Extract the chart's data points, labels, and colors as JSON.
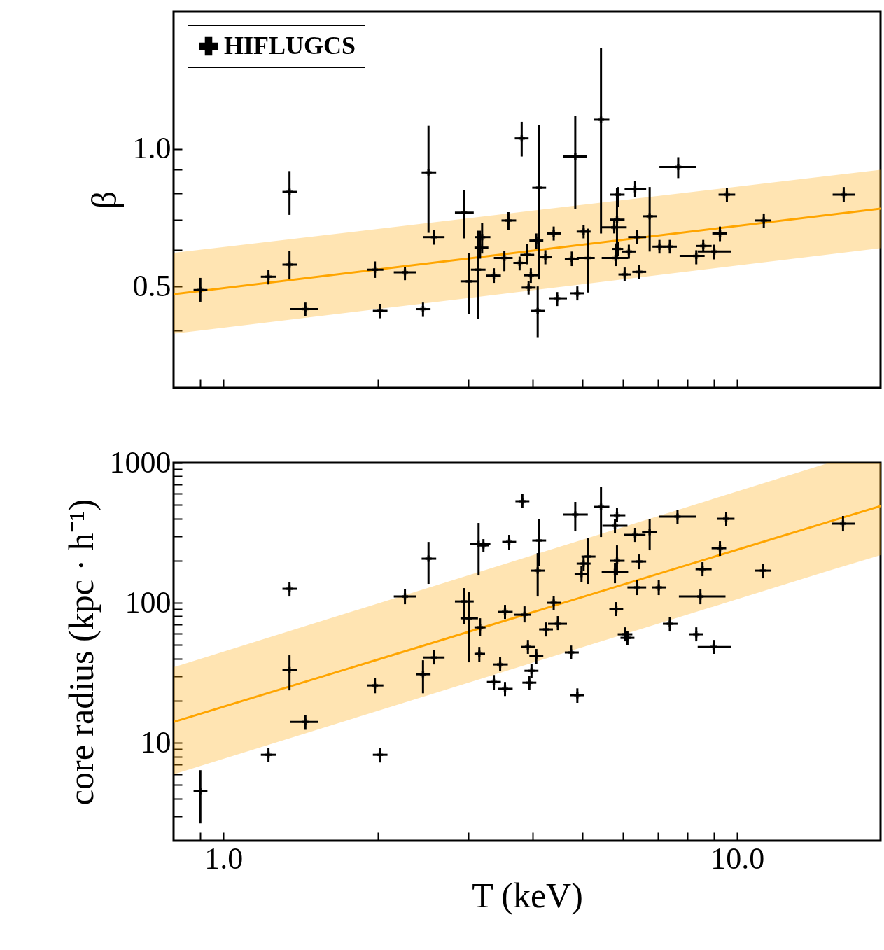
{
  "chart_data": [
    {
      "type": "scatter",
      "ylabel": "β",
      "log": "xy",
      "xlim": [
        0.8,
        19
      ],
      "ylim": [
        0.3,
        2.0
      ],
      "xticks": [
        {
          "value": 0.9,
          "label": null
        },
        {
          "value": 1,
          "label": null
        },
        {
          "value": 2,
          "label": null
        },
        {
          "value": 3,
          "label": null
        },
        {
          "value": 4,
          "label": null
        },
        {
          "value": 5,
          "label": null
        },
        {
          "value": 6,
          "label": null
        },
        {
          "value": 7,
          "label": null
        },
        {
          "value": 8,
          "label": null
        },
        {
          "value": 9,
          "label": null
        },
        {
          "value": 10,
          "label": null
        }
      ],
      "yticks": [
        {
          "value": 0.3,
          "label": null
        },
        {
          "value": 0.4,
          "label": null
        },
        0.5,
        {
          "value": 0.6,
          "label": null
        },
        {
          "value": 0.7,
          "label": null
        },
        {
          "value": 0.8,
          "label": null
        },
        {
          "value": 0.9,
          "label": null
        },
        {
          "value": 1,
          "label": "1.0"
        }
      ],
      "tick_labels": "y",
      "legend": "top left",
      "series": [
        {
          "name": "HIFLUGCS",
          "type": "scatter",
          "marker": "cross",
          "color": "#000000",
          "x": [
            0.902,
            1.224,
            1.345,
            1.345,
            1.444,
            1.972,
            2.016,
            2.256,
            2.446,
            2.507,
            2.57,
            2.939,
            3.004,
            3.129,
            3.188,
            3.158,
            3.806,
            3.587,
            3.36,
            3.522,
            3.771,
            3.902,
            3.926,
            4.115,
            4.089,
            4.064,
            4.393,
            3.965,
            4.232,
            4.839,
            4.462,
            4.884,
            5.023,
            5.118,
            4.764,
            5.43,
            5.762,
            5.853,
            5.833,
            5.798,
            5.853,
            6.327,
            6.386,
            6.151,
            6.036,
            6.446,
            6.753,
            7.055,
            7.392,
            7.674,
            8.585,
            9.022,
            8.321,
            9.544,
            9.252,
            11.26,
            16.11
          ],
          "values": [
            0.491,
            0.525,
            0.805,
            0.558,
            0.446,
            0.544,
            0.442,
            0.537,
            0.446,
            0.888,
            0.641,
            0.725,
            0.513,
            0.544,
            0.641,
            0.608,
            1.054,
            0.697,
            0.528,
            0.577,
            0.563,
            0.586,
            0.497,
            0.822,
            0.442,
            0.63,
            0.653,
            0.529,
            0.579,
            0.962,
            0.471,
            0.483,
            0.659,
            0.577,
            0.575,
            1.158,
            0.673,
            0.794,
            0.7,
            0.577,
            0.604,
            0.816,
            0.641,
            0.596,
            0.531,
            0.538,
            0.712,
            0.611,
            0.611,
            0.913,
            0.613,
            0.596,
            0.583,
            0.794,
            0.653,
            0.697,
            0.794
          ],
          "errors": [
            [
              0.463,
              0.522
            ],
            [
              0.505,
              0.544
            ],
            [
              0.717,
              0.894
            ],
            [
              0.518,
              0.598
            ],
            [
              0.43,
              0.461
            ],
            [
              0.522,
              0.567
            ],
            [
              0.426,
              0.458
            ],
            [
              0.516,
              0.552
            ],
            [
              0.429,
              0.461
            ],
            [
              0.655,
              1.123
            ],
            [
              0.617,
              0.664
            ],
            [
              0.637,
              0.811
            ],
            [
              0.435,
              0.592
            ],
            [
              0.424,
              0.662
            ],
            [
              0.59,
              0.688
            ],
            [
              0.575,
              0.662
            ],
            [
              0.962,
              1.146
            ],
            [
              0.664,
              0.727
            ],
            [
              0.509,
              0.548
            ],
            [
              0.54,
              0.598
            ],
            [
              0.542,
              0.581
            ],
            [
              0.559,
              0.619
            ],
            [
              0.48,
              0.514
            ],
            [
              0.518,
              1.126
            ],
            [
              0.386,
              0.5
            ],
            [
              0.604,
              0.653
            ],
            [
              0.63,
              0.676
            ],
            [
              0.509,
              0.548
            ],
            [
              0.559,
              0.6
            ],
            [
              0.74,
              1.179
            ],
            [
              0.453,
              0.486
            ],
            [
              0.466,
              0.5
            ],
            [
              0.637,
              0.681
            ],
            [
              0.485,
              0.669
            ],
            [
              0.554,
              0.596
            ],
            [
              0.653,
              1.661
            ],
            [
              0.653,
              0.695
            ],
            [
              0.745,
              0.825
            ],
            [
              0.579,
              0.822
            ],
            [
              0.554,
              0.621
            ],
            [
              0.583,
              0.626
            ],
            [
              0.783,
              0.851
            ],
            [
              0.619,
              0.664
            ],
            [
              0.575,
              0.617
            ],
            [
              0.513,
              0.55
            ],
            [
              0.519,
              0.558
            ],
            [
              0.596,
              0.825
            ],
            [
              0.59,
              0.632
            ],
            [
              0.59,
              0.632
            ],
            [
              0.863,
              0.959
            ],
            [
              0.596,
              0.632
            ],
            [
              0.573,
              0.617
            ],
            [
              0.559,
              0.6
            ],
            [
              0.764,
              0.822
            ],
            [
              0.628,
              0.676
            ],
            [
              0.671,
              0.722
            ],
            [
              0.764,
              0.825
            ]
          ],
          "xerrors": [
            [
              0.875,
              0.931
            ],
            [
              1.183,
              1.267
            ],
            [
              1.303,
              1.391
            ],
            [
              1.303,
              1.391
            ],
            [
              1.349,
              1.528
            ],
            [
              1.906,
              2.048
            ],
            [
              1.954,
              2.086
            ],
            [
              2.146,
              2.371
            ],
            [
              2.371,
              2.53
            ],
            [
              2.431,
              2.595
            ],
            [
              2.446,
              2.694
            ],
            [
              2.822,
              3.07
            ],
            [
              2.893,
              3.129
            ],
            [
              3.032,
              3.237
            ],
            [
              3.09,
              3.308
            ],
            [
              3.08,
              3.278
            ],
            [
              3.69,
              3.926
            ],
            [
              3.477,
              3.713
            ],
            [
              3.247,
              3.467
            ],
            [
              3.36,
              3.655
            ],
            [
              3.667,
              3.902
            ],
            [
              3.783,
              4.026
            ],
            [
              3.806,
              4.052
            ],
            [
              3.99,
              4.246
            ],
            [
              3.965,
              4.219
            ],
            [
              3.939,
              4.193
            ],
            [
              4.259,
              4.532
            ],
            [
              3.842,
              4.089
            ],
            [
              4.102,
              4.365
            ],
            [
              4.588,
              5.103
            ],
            [
              4.298,
              4.662
            ],
            [
              4.734,
              5.04
            ],
            [
              4.869,
              5.183
            ],
            [
              4.869,
              5.28
            ],
            [
              4.617,
              4.915
            ],
            [
              5.264,
              5.636
            ],
            [
              5.447,
              6.093
            ],
            [
              5.656,
              6.036
            ],
            [
              5.656,
              6.036
            ],
            [
              5.447,
              6.132
            ],
            [
              5.708,
              5.998
            ],
            [
              6.036,
              6.648
            ],
            [
              6.132,
              6.648
            ],
            [
              5.961,
              6.346
            ],
            [
              5.871,
              6.209
            ],
            [
              6.248,
              6.648
            ],
            [
              6.546,
              6.966
            ],
            [
              6.838,
              7.278
            ],
            [
              7.165,
              7.627
            ],
            [
              7.055,
              8.321
            ],
            [
              8.321,
              8.913
            ],
            [
              8.374,
              9.723
            ],
            [
              7.722,
              8.638
            ],
            [
              9.195,
              9.906
            ],
            [
              8.941,
              9.544
            ],
            [
              10.81,
              11.65
            ],
            [
              15.33,
              16.93
            ]
          ]
        },
        {
          "type": "line",
          "color": "#ffa500",
          "x": [
            0.8,
            19
          ],
          "values": [
            0.481,
            0.74
          ],
          "lower": [
            0.394,
            0.606
          ],
          "upper": [
            0.592,
            0.9
          ]
        }
      ]
    },
    {
      "type": "scatter",
      "xlabel": "T (keV)",
      "ylabel": "core radius (kpc · h⁻¹)",
      "log": "xy",
      "xlim": [
        0.8,
        19
      ],
      "ylim": [
        2,
        1000
      ],
      "xticks": [
        {
          "value": 0.9,
          "label": null
        },
        {
          "value": 1,
          "label": "1.0"
        },
        {
          "value": 2,
          "label": null
        },
        {
          "value": 3,
          "label": null
        },
        {
          "value": 4,
          "label": null
        },
        {
          "value": 5,
          "label": null
        },
        {
          "value": 6,
          "label": null
        },
        {
          "value": 7,
          "label": null
        },
        {
          "value": 8,
          "label": null
        },
        {
          "value": 9,
          "label": null
        },
        {
          "value": 10,
          "label": "10.0"
        }
      ],
      "yticks": [
        {
          "value": 3,
          "label": null
        },
        {
          "value": 4,
          "label": null
        },
        {
          "value": 5,
          "label": null
        },
        {
          "value": 6,
          "label": null
        },
        {
          "value": 7,
          "label": null
        },
        {
          "value": 8,
          "label": null
        },
        {
          "value": 9,
          "label": null
        },
        10,
        {
          "value": 20,
          "label": null
        },
        {
          "value": 30,
          "label": null
        },
        {
          "value": 40,
          "label": null
        },
        {
          "value": 50,
          "label": null
        },
        {
          "value": 60,
          "label": null
        },
        {
          "value": 70,
          "label": null
        },
        {
          "value": 80,
          "label": null
        },
        {
          "value": 90,
          "label": null
        },
        100,
        {
          "value": 200,
          "label": null
        },
        {
          "value": 300,
          "label": null
        },
        {
          "value": 400,
          "label": null
        },
        {
          "value": 500,
          "label": null
        },
        {
          "value": 600,
          "label": null
        },
        {
          "value": 700,
          "label": null
        },
        {
          "value": 800,
          "label": null
        },
        {
          "value": 900,
          "label": null
        },
        1000
      ],
      "series": [
        {
          "type": "scatter",
          "marker": "cross",
          "color": "#000000",
          "x": [
            0.902,
            1.224,
            1.345,
            1.345,
            1.444,
            1.972,
            2.016,
            2.256,
            2.446,
            2.507,
            2.57,
            2.939,
            3.004,
            3.158,
            3.148,
            3.138,
            3.207,
            3.456,
            3.36,
            3.532,
            3.532,
            3.599,
            3.818,
            4.115,
            4.089,
            3.854,
            3.914,
            4.064,
            3.977,
            3.939,
            4.393,
            4.476,
            4.246,
            4.749,
            4.884,
            4.839,
            5.43,
            5.833,
            5.78,
            6.327,
            6.753,
            5.118,
            5.023,
            4.976,
            5.833,
            5.78,
            5.815,
            6.446,
            6.386,
            7.033,
            6.055,
            6.113,
            7.65,
            7.392,
            8.478,
            8.557,
            8.321,
            8.995,
            9.252,
            9.515,
            11.22,
            16.06
          ],
          "values": [
            4.52,
            8.22,
            125.9,
            33.1,
            14.1,
            25.7,
            8.22,
            110.9,
            30.9,
            206.5,
            40.7,
            102.3,
            77.6,
            66.8,
            43.2,
            263,
            257,
            36.3,
            27.2,
            24.3,
            86.1,
            272,
            531,
            278.6,
            169.8,
            82.2,
            48.4,
            41.7,
            32.7,
            26.9,
            100,
            70.8,
            64.6,
            44.2,
            21.9,
            426.6,
            484,
            421.7,
            354.8,
            305.5,
            319.9,
            213.8,
            190.5,
            160.3,
            199.5,
            166,
            90.2,
            197.2,
            128.8,
            128.8,
            59.6,
            56.2,
            412,
            70.8,
            110.9,
            173.8,
            59.6,
            48.4,
            245.5,
            398,
            169.8,
            367.3
          ],
          "errors": [
            [
              2.66,
              6.38
            ],
            [
              7.33,
              9.23
            ],
            [
              110.9,
              141
            ],
            [
              23.7,
              42.2
            ],
            [
              12.4,
              15.8
            ],
            [
              22.6,
              29.2
            ],
            [
              7.24,
              9.23
            ],
            [
              97.7,
              125.9
            ],
            [
              22.6,
              38.9
            ],
            [
              136.5,
              272
            ],
            [
              36.3,
              46.2
            ],
            [
              70.8,
              127.4
            ],
            [
              37.6,
              118.9
            ],
            [
              58.2,
              77.6
            ],
            [
              38.0,
              48.4
            ],
            [
              156.7,
              371.5
            ],
            [
              231.7,
              285
            ],
            [
              32.4,
              41.2
            ],
            [
              24.0,
              30.5
            ],
            [
              21.6,
              27.2
            ],
            [
              76.7,
              96.6
            ],
            [
              239.9,
              305.5
            ],
            [
              473.2,
              602.6
            ],
            [
              184.1,
              398
            ],
            [
              110.9,
              226.5
            ],
            [
              72.4,
              94.4
            ],
            [
              43.2,
              54.3
            ],
            [
              36.7,
              46.8
            ],
            [
              29.2,
              36.7
            ],
            [
              24.0,
              30.2
            ],
            [
              89.1,
              112.2
            ],
            [
              63.8,
              80.4
            ],
            [
              57.5,
              72.4
            ],
            [
              39.4,
              49.5
            ],
            [
              19.3,
              24.5
            ],
            [
              323.6,
              524.8
            ],
            [
              295,
              676
            ],
            [
              375.8,
              473.2
            ],
            [
              312.6,
              398
            ],
            [
              272,
              342.8
            ],
            [
              237.1,
              398
            ],
            [
              136.5,
              288.4
            ],
            [
              169.8,
              213.8
            ],
            [
              141.3,
              184.1
            ],
            [
              156.7,
              257
            ],
            [
              138,
              192.8
            ],
            [
              80.4,
              101.2
            ],
            [
              173.8,
              221.3
            ],
            [
              113.5,
              146.2
            ],
            [
              113.5,
              146.2
            ],
            [
              53.1,
              66.8
            ],
            [
              50.1,
              63.1
            ],
            [
              363.1,
              462.4
            ],
            [
              62.4,
              79.4
            ],
            [
              97.7,
              124.5
            ],
            [
              154.9,
              195
            ],
            [
              53.1,
              66.8
            ],
            [
              43.2,
              54.3
            ],
            [
              216.3,
              275.4
            ],
            [
              350.8,
              446.7
            ],
            [
              149.6,
              190.5
            ],
            [
              323.6,
              416.9
            ]
          ],
          "xerrors": [
            [
              0.875,
              0.931
            ],
            [
              1.183,
              1.267
            ],
            [
              1.303,
              1.391
            ],
            [
              1.303,
              1.391
            ],
            [
              1.349,
              1.528
            ],
            [
              1.906,
              2.048
            ],
            [
              1.954,
              2.086
            ],
            [
              2.146,
              2.371
            ],
            [
              2.371,
              2.53
            ],
            [
              2.431,
              2.595
            ],
            [
              2.446,
              2.694
            ],
            [
              2.822,
              3.07
            ],
            [
              2.893,
              3.129
            ],
            [
              3.08,
              3.237
            ],
            [
              3.08,
              3.23
            ],
            [
              3.022,
              3.308
            ],
            [
              3.129,
              3.286
            ],
            [
              3.35,
              3.577
            ],
            [
              3.257,
              3.467
            ],
            [
              3.423,
              3.655
            ],
            [
              3.423,
              3.655
            ],
            [
              3.488,
              3.713
            ],
            [
              3.701,
              3.939
            ],
            [
              3.99,
              4.246
            ],
            [
              3.965,
              4.219
            ],
            [
              3.678,
              3.965
            ],
            [
              3.795,
              4.039
            ],
            [
              3.939,
              4.193
            ],
            [
              3.854,
              4.102
            ],
            [
              3.818,
              4.064
            ],
            [
              4.259,
              4.532
            ],
            [
              4.284,
              4.662
            ],
            [
              4.115,
              4.378
            ],
            [
              4.617,
              4.915
            ],
            [
              4.734,
              5.04
            ],
            [
              4.588,
              5.118
            ],
            [
              5.264,
              5.636
            ],
            [
              5.656,
              6.055
            ],
            [
              5.464,
              6.113
            ],
            [
              6.017,
              6.628
            ],
            [
              6.526,
              6.966
            ],
            [
              4.976,
              5.297
            ],
            [
              4.869,
              5.183
            ],
            [
              4.824,
              5.118
            ],
            [
              5.656,
              6.036
            ],
            [
              5.447,
              6.132
            ],
            [
              5.636,
              5.998
            ],
            [
              6.228,
              6.648
            ],
            [
              6.113,
              6.648
            ],
            [
              6.817,
              7.278
            ],
            [
              5.853,
              6.248
            ],
            [
              5.926,
              6.307
            ],
            [
              7.033,
              8.321
            ],
            [
              7.165,
              7.65
            ],
            [
              7.697,
              9.485
            ],
            [
              8.295,
              8.913
            ],
            [
              8.067,
              8.585
            ],
            [
              8.374,
              9.723
            ],
            [
              8.913,
              9.515
            ],
            [
              9.137,
              9.876
            ],
            [
              10.81,
              11.65
            ],
            [
              15.28,
              16.93
            ]
          ]
        },
        {
          "type": "line",
          "color": "#ffa500",
          "x": [
            0.8,
            15.1,
            19
          ],
          "values": [
            14.1,
            380,
            490
          ],
          "lower": [
            5.96,
            170,
            219
          ],
          "upper": [
            34.7,
            1000,
            1000
          ]
        }
      ]
    }
  ]
}
